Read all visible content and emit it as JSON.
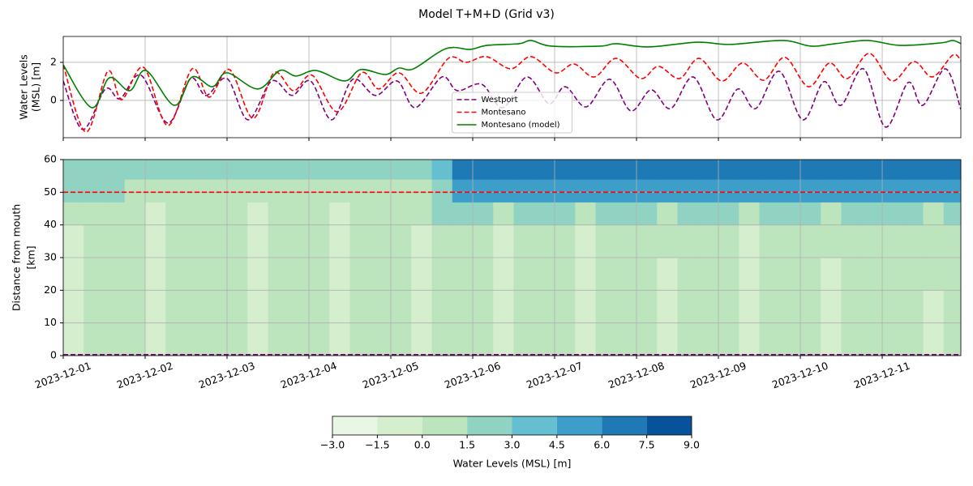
{
  "chart_data": [
    {
      "type": "line",
      "title": "Model T+M+D (Grid v3)",
      "ylabel": [
        "Water Levels",
        "(MSL) [m]"
      ],
      "xlim": [
        0,
        10.96
      ],
      "xticks": [
        0,
        1,
        2,
        3,
        4,
        5,
        6,
        7,
        8,
        9,
        10
      ],
      "ylim": [
        -1.96,
        3.36
      ],
      "yticks": [
        0,
        2
      ],
      "grid": true,
      "legend": "lower center",
      "series": [
        {
          "name": "Westport",
          "color": "purple",
          "linestyle": "dashed",
          "x": [
            0,
            0.238,
            0.515,
            0.693,
            0.95,
            1.277,
            1.554,
            1.743,
            2.0,
            2.257,
            2.545,
            2.792,
            3.02,
            3.277,
            3.535,
            3.812,
            4.079,
            4.297,
            4.624,
            4.812,
            5.109,
            5.366,
            5.663,
            5.931,
            6.129,
            6.386,
            6.673,
            6.931,
            7.178,
            7.416,
            7.693,
            7.98,
            8.238,
            8.455,
            8.743,
            9.03,
            9.287,
            9.495,
            9.772,
            10.04,
            10.317,
            10.495,
            10.772,
            10.96
          ],
          "values": [
            1.02,
            -1.53,
            0.6,
            0.09,
            1.32,
            -1.19,
            1.15,
            0.26,
            1.15,
            -1.02,
            1.02,
            0.26,
            1.02,
            -1.02,
            1.11,
            0.26,
            1.02,
            -0.38,
            1.23,
            0.51,
            0.85,
            -0.38,
            1.23,
            -0.17,
            0.72,
            -0.34,
            1.11,
            -0.55,
            0.55,
            -0.43,
            1.23,
            -1.02,
            0.6,
            -0.43,
            1.53,
            -1.02,
            0.98,
            -0.26,
            1.66,
            -1.4,
            0.94,
            -0.26,
            1.66,
            -0.47
          ]
        },
        {
          "name": "Montesano",
          "color": "red",
          "linestyle": "dashed",
          "x": [
            0,
            0.277,
            0.545,
            0.713,
            0.98,
            1.277,
            1.574,
            1.782,
            2.03,
            2.317,
            2.574,
            2.812,
            3.04,
            3.347,
            3.644,
            3.851,
            4.099,
            4.376,
            4.703,
            4.921,
            5.168,
            5.465,
            5.713,
            6.01,
            6.238,
            6.485,
            6.752,
            7.05,
            7.267,
            7.525,
            7.762,
            8.04,
            8.297,
            8.554,
            8.812,
            9.099,
            9.356,
            9.574,
            9.842,
            10.119,
            10.386,
            10.614,
            10.861,
            10.96
          ],
          "values": [
            1.87,
            -1.66,
            1.53,
            0.04,
            1.74,
            -1.32,
            1.66,
            0.17,
            1.62,
            -0.94,
            1.45,
            0.51,
            1.32,
            -0.6,
            1.45,
            0.6,
            1.45,
            0.38,
            2.21,
            2.0,
            2.3,
            1.66,
            2.3,
            1.45,
            1.91,
            1.23,
            2.21,
            1.15,
            1.79,
            1.15,
            2.21,
            1.02,
            1.96,
            1.06,
            2.26,
            0.72,
            1.96,
            1.15,
            2.47,
            1.02,
            2.04,
            1.23,
            2.38,
            2.09
          ]
        },
        {
          "name": "Montesano (model)",
          "color": "green",
          "linestyle": "solid",
          "x": [
            0,
            0.347,
            0.564,
            0.812,
            1.01,
            1.356,
            1.574,
            1.822,
            2.0,
            2.376,
            2.644,
            2.842,
            3.089,
            3.436,
            3.634,
            3.931,
            4.099,
            4.277,
            4.673,
            4.97,
            5.168,
            5.564,
            5.713,
            5.96,
            6.554,
            6.752,
            7.149,
            7.743,
            8.139,
            8.782,
            9.129,
            9.426,
            9.822,
            10.218,
            10.713,
            10.861,
            10.96
          ],
          "values": [
            1.87,
            -0.38,
            1.19,
            0.51,
            1.57,
            -0.26,
            1.23,
            0.72,
            1.45,
            0.6,
            1.57,
            1.28,
            1.57,
            1.02,
            1.62,
            1.36,
            1.7,
            1.66,
            2.72,
            2.68,
            2.89,
            2.98,
            3.15,
            2.85,
            2.85,
            2.98,
            2.81,
            3.06,
            2.94,
            3.15,
            2.85,
            2.98,
            3.15,
            2.89,
            3.02,
            3.15,
            2.98
          ]
        }
      ]
    },
    {
      "type": "contour",
      "ylabel": [
        "Distance from mouth",
        "[km]"
      ],
      "xlim": [
        0,
        10.96
      ],
      "xticks": [
        {
          "value": 0,
          "label": "2023-12-01"
        },
        {
          "value": 1,
          "label": "2023-12-02"
        },
        {
          "value": 2,
          "label": "2023-12-03"
        },
        {
          "value": 3,
          "label": "2023-12-04"
        },
        {
          "value": 4,
          "label": "2023-12-05"
        },
        {
          "value": 5,
          "label": "2023-12-06"
        },
        {
          "value": 6,
          "label": "2023-12-07"
        },
        {
          "value": 7,
          "label": "2023-12-08"
        },
        {
          "value": 8,
          "label": "2023-12-09"
        },
        {
          "value": 9,
          "label": "2023-12-10"
        },
        {
          "value": 10,
          "label": "2023-12-11"
        }
      ],
      "ylim": [
        0,
        60
      ],
      "yticks": [
        0,
        10,
        20,
        30,
        40,
        50,
        60
      ],
      "grid": true,
      "x_edges": [
        0,
        0.25,
        0.5,
        0.75,
        1,
        1.25,
        1.5,
        1.75,
        2,
        2.25,
        2.5,
        2.75,
        3,
        3.25,
        3.5,
        3.75,
        4,
        4.25,
        4.5,
        4.75,
        5,
        5.25,
        5.5,
        5.75,
        6,
        6.25,
        6.5,
        6.75,
        7,
        7.25,
        7.5,
        7.75,
        8,
        8.25,
        8.5,
        8.75,
        9,
        9.25,
        9.5,
        9.75,
        10,
        10.25,
        10.5,
        10.75,
        10.96
      ],
      "y_edges": [
        0,
        10,
        20,
        30,
        40,
        47,
        54,
        60
      ],
      "z": [
        [
          -0.5,
          0.8,
          0.8,
          0.8,
          -0.5,
          0.8,
          0.8,
          0.8,
          0.8,
          -0.5,
          0.8,
          0.8,
          0.8,
          -0.5,
          0.8,
          0.8,
          0.8,
          -0.5,
          0.8,
          0.8,
          0.8,
          -0.5,
          0.8,
          0.8,
          0.8,
          -0.5,
          0.8,
          0.8,
          0.8,
          -0.5,
          0.8,
          0.8,
          0.8,
          -0.5,
          0.8,
          0.8,
          0.8,
          -0.5,
          0.8,
          0.8,
          0.8,
          0.8,
          -0.5,
          0.8
        ],
        [
          -0.5,
          0.8,
          0.8,
          0.8,
          -0.5,
          0.8,
          0.8,
          0.8,
          0.8,
          -0.5,
          0.8,
          0.8,
          0.8,
          -0.5,
          0.8,
          0.8,
          0.8,
          -0.5,
          0.8,
          0.8,
          0.8,
          -0.5,
          0.8,
          0.8,
          0.8,
          -0.5,
          0.8,
          0.8,
          0.8,
          -0.5,
          0.8,
          0.8,
          0.8,
          -0.5,
          0.8,
          0.8,
          0.8,
          -0.5,
          0.8,
          0.8,
          0.8,
          0.8,
          -0.5,
          0.8
        ],
        [
          -0.5,
          0.8,
          0.8,
          0.8,
          -0.5,
          0.8,
          0.8,
          0.8,
          0.8,
          -0.5,
          0.8,
          0.8,
          0.8,
          -0.5,
          0.8,
          0.8,
          0.8,
          -0.5,
          0.8,
          0.8,
          0.8,
          -0.5,
          0.8,
          0.8,
          0.8,
          -0.5,
          0.8,
          0.8,
          0.8,
          -0.5,
          0.8,
          0.8,
          0.8,
          -0.5,
          0.8,
          0.8,
          0.8,
          -0.5,
          0.8,
          0.8,
          0.8,
          0.8,
          0.8,
          0.8
        ],
        [
          -0.5,
          0.8,
          0.8,
          0.8,
          -0.5,
          0.8,
          0.8,
          0.8,
          0.8,
          -0.5,
          0.8,
          0.8,
          0.8,
          -0.5,
          0.8,
          0.8,
          0.8,
          -0.5,
          0.8,
          0.8,
          0.8,
          -0.5,
          0.8,
          0.8,
          0.8,
          -0.5,
          0.8,
          0.8,
          0.8,
          0.8,
          0.8,
          0.8,
          0.8,
          -0.5,
          0.8,
          0.8,
          0.8,
          0.8,
          0.8,
          0.8,
          0.8,
          0.8,
          0.8,
          0.8
        ],
        [
          0.8,
          0.8,
          0.8,
          0.8,
          -0.5,
          0.8,
          0.8,
          0.8,
          0.8,
          -0.5,
          0.8,
          0.8,
          0.8,
          -0.5,
          0.8,
          0.8,
          0.8,
          0.8,
          2.0,
          2.0,
          2.0,
          0.8,
          2.0,
          2.0,
          2.0,
          0.8,
          2.0,
          2.0,
          2.0,
          0.8,
          2.0,
          2.0,
          2.0,
          0.8,
          2.0,
          2.0,
          2.0,
          0.8,
          2.0,
          2.0,
          2.0,
          2.0,
          0.8,
          2.0
        ],
        [
          2.0,
          2.0,
          2.0,
          1.0,
          1.0,
          1.0,
          1.0,
          1.0,
          1.0,
          1.0,
          1.0,
          1.0,
          1.0,
          1.0,
          1.0,
          1.0,
          1.0,
          1.0,
          2.5,
          5.0,
          5.0,
          5.0,
          5.0,
          5.0,
          5.0,
          5.0,
          5.0,
          5.0,
          5.0,
          5.0,
          5.0,
          5.0,
          5.0,
          5.0,
          5.0,
          5.0,
          5.0,
          5.0,
          5.0,
          5.0,
          5.0,
          5.0,
          5.0,
          5.0
        ],
        [
          2.0,
          2.0,
          2.0,
          2.0,
          2.0,
          2.0,
          2.0,
          2.0,
          2.0,
          2.0,
          2.0,
          2.0,
          2.0,
          2.0,
          2.0,
          2.0,
          2.0,
          2.0,
          4.0,
          6.8,
          6.8,
          6.8,
          6.8,
          6.8,
          6.8,
          6.8,
          6.8,
          6.8,
          6.8,
          6.8,
          6.8,
          6.8,
          6.8,
          6.8,
          6.8,
          6.8,
          6.8,
          6.8,
          6.8,
          6.8,
          6.8,
          6.8,
          6.8,
          6.8
        ]
      ],
      "hlines": [
        {
          "y": 50,
          "color": "red",
          "linestyle": "dashed"
        },
        {
          "y": 0.3,
          "color": "purple",
          "linestyle": "dashed"
        }
      ],
      "colorbar": {
        "label": "Water Levels (MSL) [m]",
        "levels": [
          -3,
          -1.5,
          0,
          1.5,
          3,
          4.5,
          6,
          7.5,
          9
        ],
        "colors": [
          "#e9f6e5",
          "#d4eece",
          "#bce4bd",
          "#91d3c2",
          "#65bfd0",
          "#3d9fc9",
          "#1e79b5",
          "#08529b"
        ],
        "ticks": [
          {
            "value": -3,
            "label": "−3.0"
          },
          {
            "value": -1.5,
            "label": "−1.5"
          },
          {
            "value": 0,
            "label": "0.0"
          },
          {
            "value": 1.5,
            "label": "1.5"
          },
          {
            "value": 3,
            "label": "3.0"
          },
          {
            "value": 4.5,
            "label": "4.5"
          },
          {
            "value": 6,
            "label": "6.0"
          },
          {
            "value": 7.5,
            "label": "7.5"
          },
          {
            "value": 9,
            "label": "9.0"
          }
        ]
      }
    }
  ]
}
